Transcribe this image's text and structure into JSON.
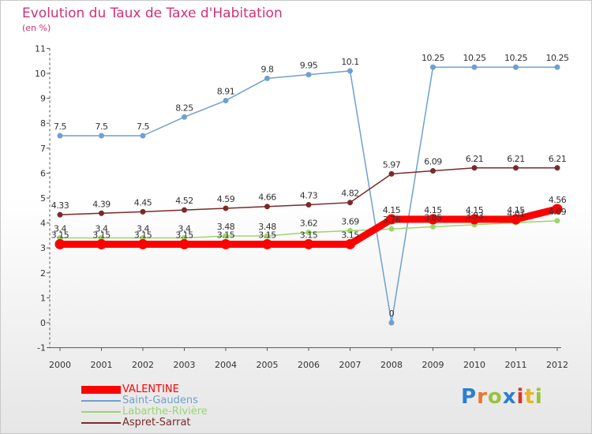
{
  "header": {
    "title": "Evolution du Taux de Taxe d'Habitation",
    "subtitle": "(en %)"
  },
  "chart_data": {
    "type": "line",
    "title": "Evolution du Taux de Taxe d'Habitation",
    "ylabel": "(en %)",
    "xlabel": "",
    "x": [
      "2000",
      "2001",
      "2002",
      "2003",
      "2004",
      "2005",
      "2006",
      "2007",
      "2008",
      "2009",
      "2010",
      "2011",
      "2012"
    ],
    "ylim": [
      -1,
      11
    ],
    "yticks": [
      "-1",
      "0",
      "1",
      "2",
      "3",
      "4",
      "5",
      "6",
      "7",
      "8",
      "9",
      "10",
      "11"
    ],
    "grid": false,
    "legend_position": "bottom-left",
    "series": [
      {
        "name": "VALENTINE",
        "color": "#ff0000",
        "values": [
          3.15,
          3.15,
          3.15,
          3.15,
          3.15,
          3.15,
          3.15,
          3.15,
          4.15,
          4.15,
          4.15,
          4.15,
          4.56
        ],
        "labels": [
          "3.15",
          "3.15",
          "3.15",
          "3.15",
          "3.15",
          "3.15",
          "3.15",
          "3.15",
          "4.15",
          "4.15",
          "4.15",
          "4.15",
          "4.56"
        ]
      },
      {
        "name": "Saint-Gaudens",
        "color": "#6fa0cf",
        "values": [
          7.5,
          7.5,
          7.5,
          8.25,
          8.91,
          9.8,
          9.95,
          10.1,
          0,
          10.25,
          10.25,
          10.25,
          10.25
        ],
        "labels": [
          "7.5",
          "7.5",
          "7.5",
          "8.25",
          "8.91",
          "9.8",
          "9.95",
          "10.1",
          "0",
          "10.25",
          "10.25",
          "10.25",
          "10.25"
        ]
      },
      {
        "name": "Labarthe-Rivière",
        "color": "#9ad66e",
        "values": [
          3.4,
          3.4,
          3.4,
          3.4,
          3.48,
          3.48,
          3.62,
          3.69,
          3.76,
          3.85,
          3.93,
          4.01,
          4.09
        ],
        "labels": [
          "3.4",
          "3.4",
          "3.4",
          "3.4",
          "3.48",
          "3.48",
          "3.62",
          "3.69",
          "3.76",
          "3.85",
          "3.93",
          "4.01",
          "4.09"
        ]
      },
      {
        "name": "Aspret-Sarrat",
        "color": "#7a2a2a",
        "values": [
          4.33,
          4.39,
          4.45,
          4.52,
          4.59,
          4.66,
          4.73,
          4.82,
          5.97,
          6.09,
          6.21,
          6.21,
          6.21
        ],
        "labels": [
          "4.33",
          "4.39",
          "4.45",
          "4.52",
          "4.59",
          "4.66",
          "4.73",
          "4.82",
          "5.97",
          "6.09",
          "6.21",
          "6.21",
          "6.21"
        ]
      }
    ]
  },
  "legend": {
    "items": [
      {
        "label": "VALENTINE",
        "color": "#ff0000"
      },
      {
        "label": "Saint-Gaudens",
        "color": "#6fa0cf"
      },
      {
        "label": "Labarthe-Rivière",
        "color": "#9ad66e"
      },
      {
        "label": "Aspret-Sarrat",
        "color": "#7a2a2a"
      }
    ]
  },
  "branding": {
    "logo_text": "Proxiti",
    "logo_colors": [
      "#2b7fd0",
      "#e8762b",
      "#9ac23c",
      "#2b7fd0",
      "#d23a2a",
      "#e8b52b",
      "#9ac23c"
    ]
  }
}
